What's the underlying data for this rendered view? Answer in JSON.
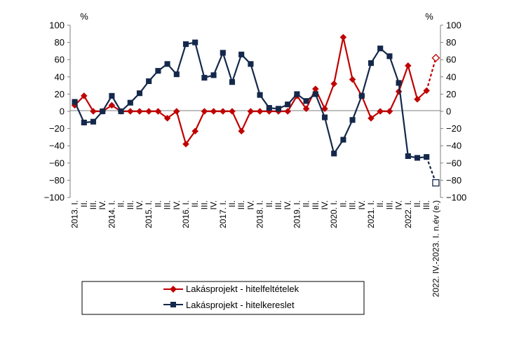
{
  "chart_data": {
    "type": "line",
    "y_unit_left": "%",
    "y_unit_right": "%",
    "ylim": [
      -100,
      100
    ],
    "ytick_step": 20,
    "categories": [
      "2013. I.",
      "II.",
      "III.",
      "IV.",
      "2014. I.",
      "II.",
      "III.",
      "IV.",
      "2015. I.",
      "II.",
      "III.",
      "IV.",
      "2016. I.",
      "II.",
      "III.",
      "IV.",
      "2017. I.",
      "II.",
      "III.",
      "IV.",
      "2018. I.",
      "II.",
      "III.",
      "IV.",
      "2019. I.",
      "II.",
      "III.",
      "IV.",
      "2020. I.",
      "II.",
      "III.",
      "IV.",
      "2021. I.",
      "II.",
      "III.",
      "IV.",
      "2022. I.",
      "II.",
      "III.",
      "2022. IV.-2023. I. n.év (e.)"
    ],
    "series": [
      {
        "name": "Lakásprojekt - hitelfeltételek",
        "color": "#C00000",
        "marker": "diamond",
        "values": [
          7,
          18,
          0,
          0,
          7,
          0,
          0,
          0,
          0,
          0,
          -8,
          0,
          -38,
          -23,
          0,
          0,
          0,
          0,
          -23,
          0,
          0,
          0,
          0,
          0,
          18,
          3,
          26,
          3,
          32,
          86,
          37,
          18,
          -8,
          0,
          0,
          23,
          53,
          14,
          24,
          62
        ],
        "forecast_last": true
      },
      {
        "name": "Lakásprojekt - hitelkereslet",
        "color": "#14284B",
        "marker": "square",
        "values": [
          11,
          -13,
          -12,
          0,
          18,
          0,
          10,
          21,
          35,
          47,
          55,
          43,
          78,
          80,
          39,
          42,
          68,
          34,
          66,
          55,
          19,
          4,
          3,
          8,
          20,
          12,
          20,
          -7,
          -49,
          -33,
          -10,
          18,
          56,
          73,
          64,
          33,
          -52,
          -54,
          -53,
          -83
        ],
        "forecast_last": true
      }
    ],
    "legend_position": "bottom",
    "grid": false
  }
}
